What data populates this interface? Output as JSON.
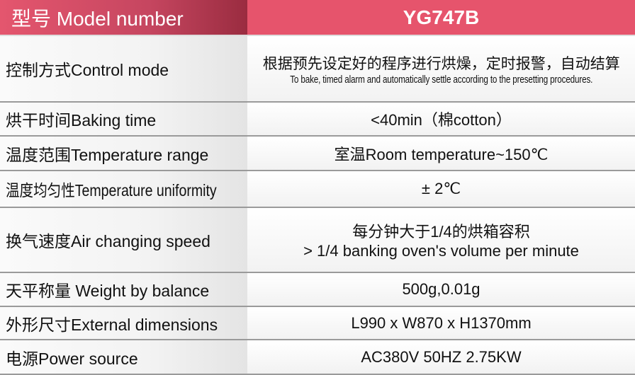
{
  "header": {
    "label": "型号 Model number",
    "value": "YG747B"
  },
  "rows": [
    {
      "label": "控制方式Control mode",
      "value": "根据预先设定好的程序进行烘燥，定时报警，自动结算",
      "value2": "To bake, timed alarm and automatically settle according to the presetting procedures."
    },
    {
      "label": "烘干时间Baking time",
      "value": "<40min（棉cotton）"
    },
    {
      "label": "温度范围Temperature range",
      "value": "室温Room temperature~150℃"
    },
    {
      "label": "温度均匀性Temperature uniformity",
      "value": "± 2℃"
    },
    {
      "label": "换气速度Air changing speed",
      "value": "每分钟大于1/4的烘箱容积",
      "value2": "> 1/4 banking oven's volume per minute"
    },
    {
      "label": "天平称量 Weight by balance",
      "value": "500g,0.01g"
    },
    {
      "label": "外形尺寸External dimensions",
      "value": "L990 x W870 x H1370mm"
    },
    {
      "label": "电源Power source",
      "value": "AC380V  50HZ  2.75KW"
    }
  ],
  "colors": {
    "header_left": "#c64660",
    "header_right": "#e6546c"
  }
}
